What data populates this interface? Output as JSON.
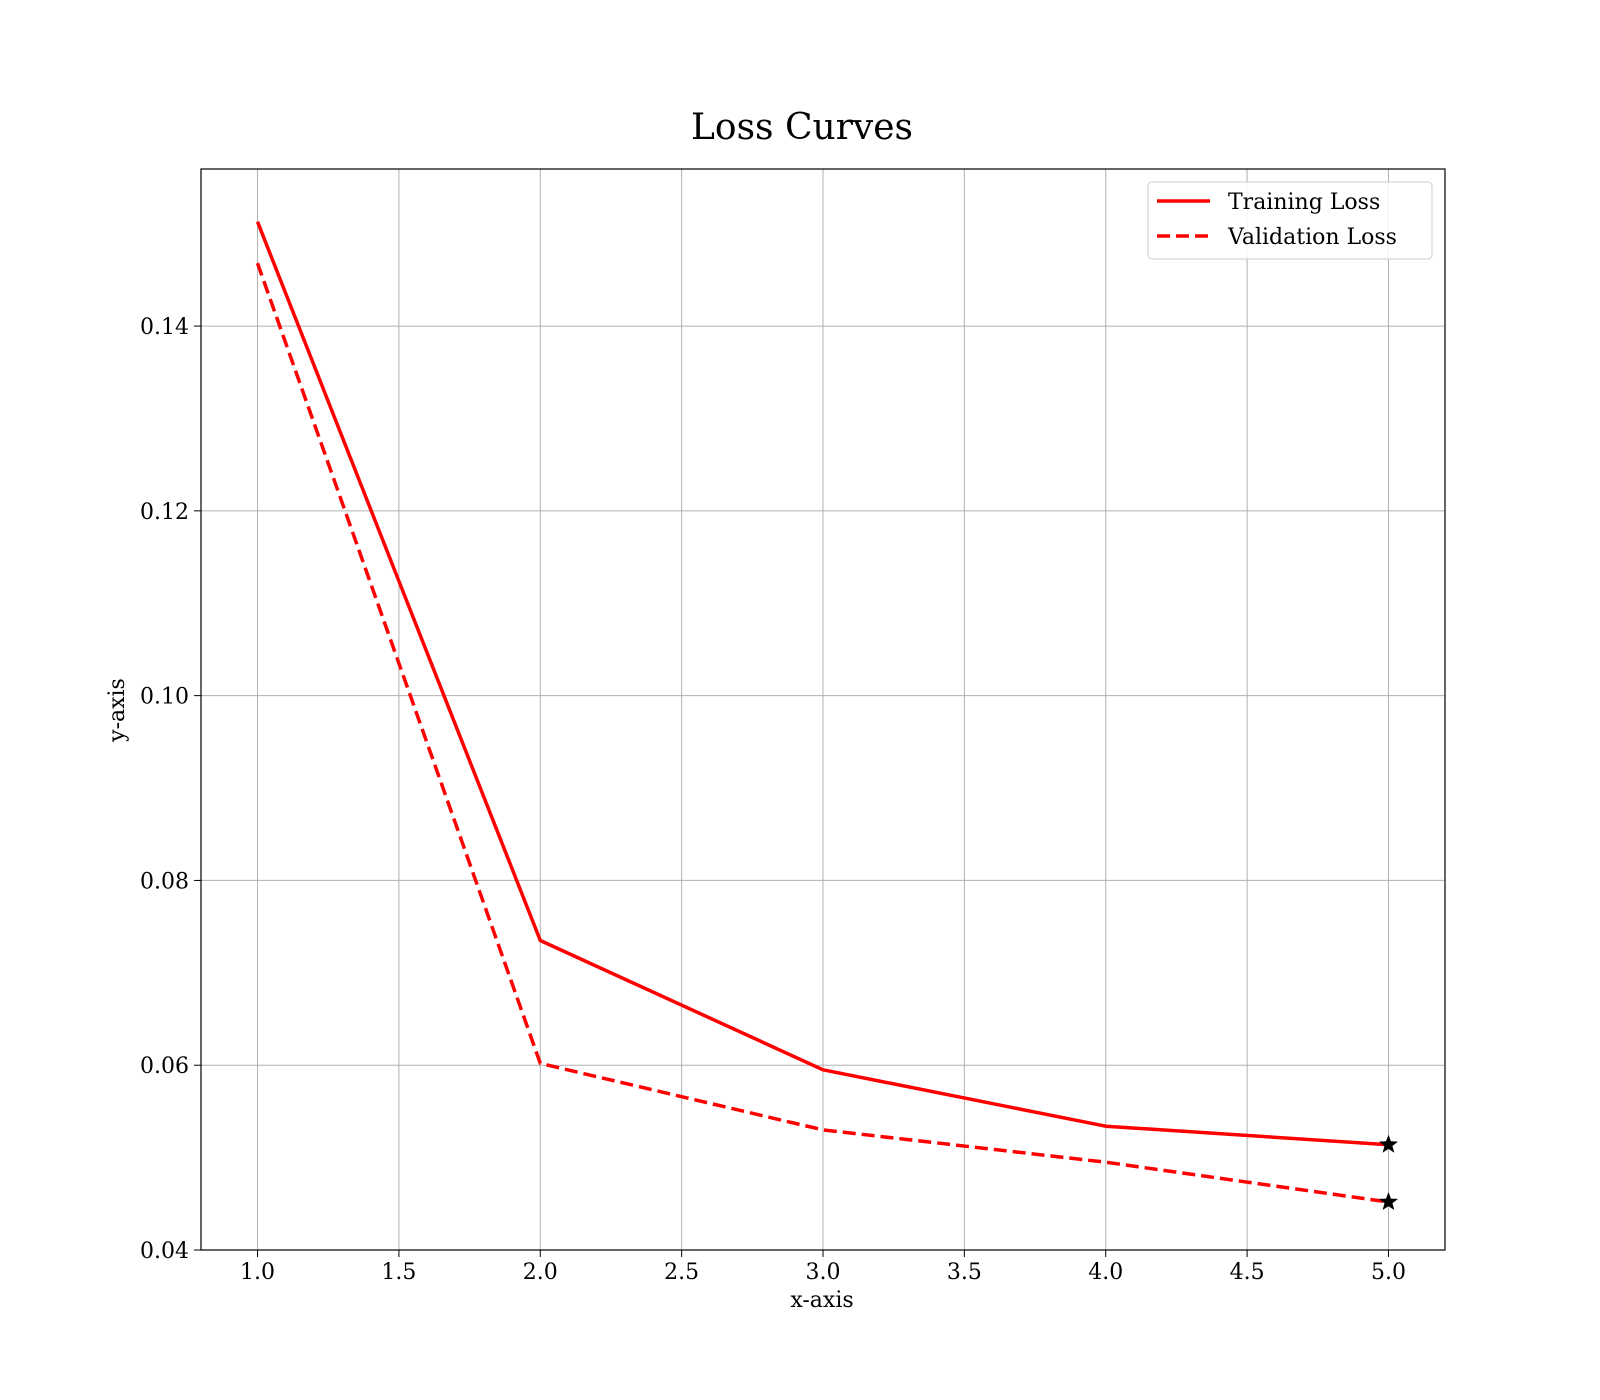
{
  "chart_data": {
    "type": "line",
    "title": "Loss Curves",
    "xlabel": "x-axis",
    "ylabel": "y-axis",
    "x": [
      1,
      2,
      3,
      4,
      5
    ],
    "xlim": [
      0.8,
      5.2
    ],
    "ylim": [
      0.04,
      0.157
    ],
    "xticks": [
      "1.0",
      "1.5",
      "2.0",
      "2.5",
      "3.0",
      "3.5",
      "4.0",
      "4.5",
      "5.0"
    ],
    "yticks": [
      "0.04",
      "0.06",
      "0.08",
      "0.10",
      "0.12",
      "0.14"
    ],
    "grid": true,
    "legend_position": "top-right",
    "series": [
      {
        "name": "Training Loss",
        "values": [
          0.1513,
          0.0735,
          0.0595,
          0.0534,
          0.0514
        ],
        "color": "#ff0000",
        "style": "solid",
        "end_marker": "star"
      },
      {
        "name": "Validation Loss",
        "values": [
          0.1468,
          0.0602,
          0.053,
          0.0495,
          0.0452
        ],
        "color": "#ff0000",
        "style": "dashed",
        "end_marker": "star"
      }
    ]
  }
}
